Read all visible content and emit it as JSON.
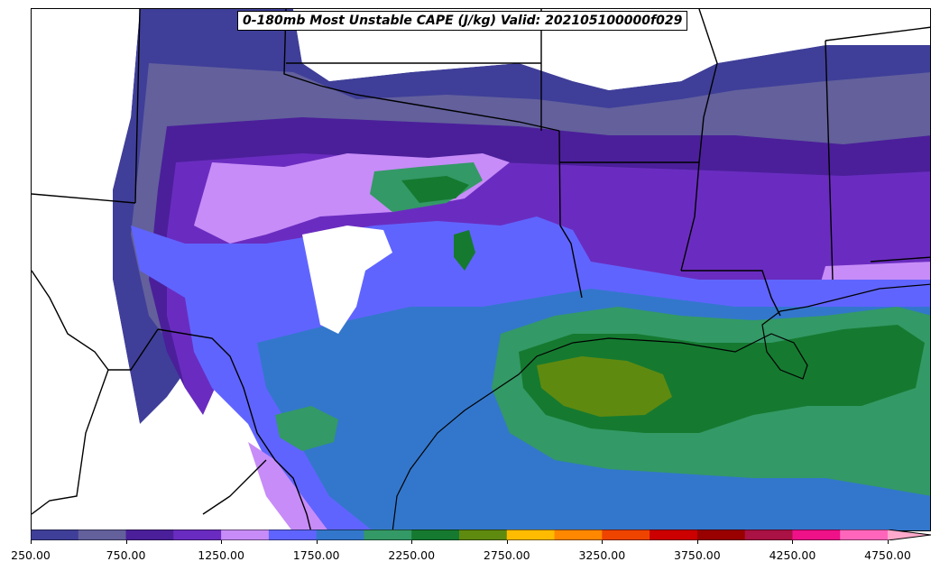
{
  "title": "0-180mb Most Unstable CAPE (J/kg) Valid: 202105100000f029",
  "colorbar": {
    "colors": [
      "#3f3f99",
      "#63609c",
      "#4b1f9a",
      "#6a2cc0",
      "#c78cf7",
      "#6064ff",
      "#3377cc",
      "#339966",
      "#157a30",
      "#5f8a10",
      "#ffbb00",
      "#ff8800",
      "#ee4400",
      "#cc0000",
      "#990000",
      "#aa1144",
      "#ee1188",
      "#ff66bb",
      "#ffaacc"
    ],
    "tick_labels": [
      "250.00",
      "750.00",
      "1250.00",
      "1750.00",
      "2250.00",
      "2750.00",
      "3250.00",
      "3750.00",
      "4250.00",
      "4750.00"
    ],
    "extend": "max"
  },
  "map": {
    "region": "South-central United States and northwestern Gulf of Mexico",
    "field": "Most Unstable CAPE",
    "features": [
      "state-borders",
      "coastline",
      "country-border"
    ]
  }
}
